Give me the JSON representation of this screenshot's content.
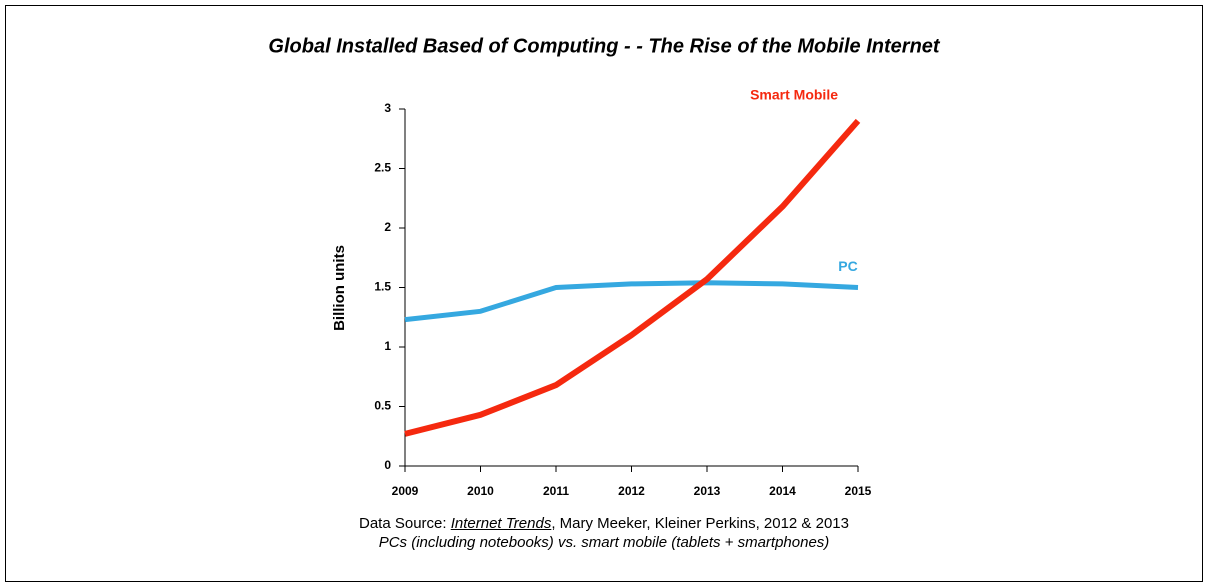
{
  "chart_data": {
    "type": "line",
    "title": "Global Installed Based of Computing - - The Rise of the Mobile Internet",
    "y_label": "Billion units",
    "categories": [
      "2009",
      "2010",
      "2011",
      "2012",
      "2013",
      "2014",
      "2015"
    ],
    "series": [
      {
        "name": "PC",
        "color": "#35a8e0",
        "values": [
          1.23,
          1.3,
          1.5,
          1.53,
          1.54,
          1.53,
          1.5
        ]
      },
      {
        "name": "Smart Mobile",
        "color": "#f5290f",
        "values": [
          0.27,
          0.43,
          0.68,
          1.1,
          1.57,
          2.18,
          2.9
        ]
      }
    ],
    "ylim": [
      0,
      3
    ],
    "yticks": [
      0,
      0.5,
      1,
      1.5,
      2,
      2.5,
      3
    ],
    "grid": false,
    "source_prefix": "Data Source:",
    "source_title": "Internet Trends",
    "source_rest": ", Mary Meeker, Kleiner Perkins, 2012 & 2013",
    "note": "PCs (including notebooks) vs. smart mobile (tablets + smartphones)"
  }
}
